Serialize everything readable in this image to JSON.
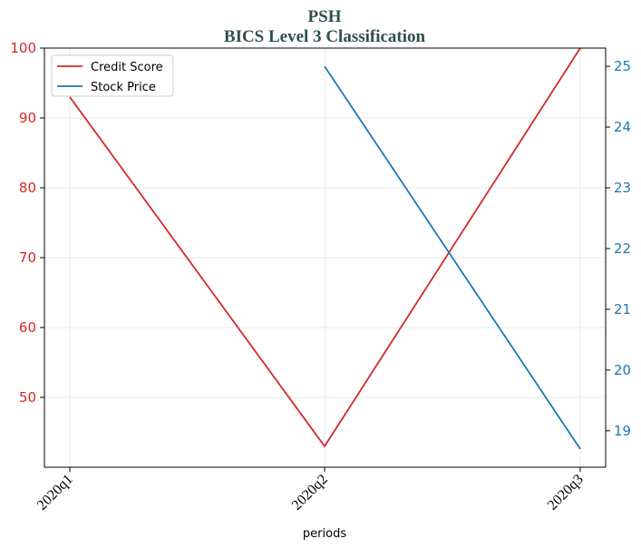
{
  "chart_data": {
    "type": "line",
    "title": "PSH",
    "subtitle": "BICS Level 3 Classification",
    "xlabel": "periods",
    "categories": [
      "2020q1",
      "2020q2",
      "2020q3"
    ],
    "left_axis": {
      "ylim": [
        40,
        100
      ],
      "ticks": [
        50,
        60,
        70,
        80,
        90,
        100
      ],
      "color": "#d62728"
    },
    "right_axis": {
      "ylim": [
        18.4,
        25.3
      ],
      "ticks": [
        19,
        20,
        21,
        22,
        23,
        24,
        25
      ],
      "color": "#1f77b4"
    },
    "series": [
      {
        "name": "Credit Score",
        "axis": "left",
        "color": "#d62728",
        "values": [
          93,
          43,
          100
        ]
      },
      {
        "name": "Stock Price",
        "axis": "right",
        "color": "#1f77b4",
        "values": [
          null,
          25.0,
          18.7
        ]
      }
    ],
    "grid": true,
    "legend_position": "top-left"
  }
}
